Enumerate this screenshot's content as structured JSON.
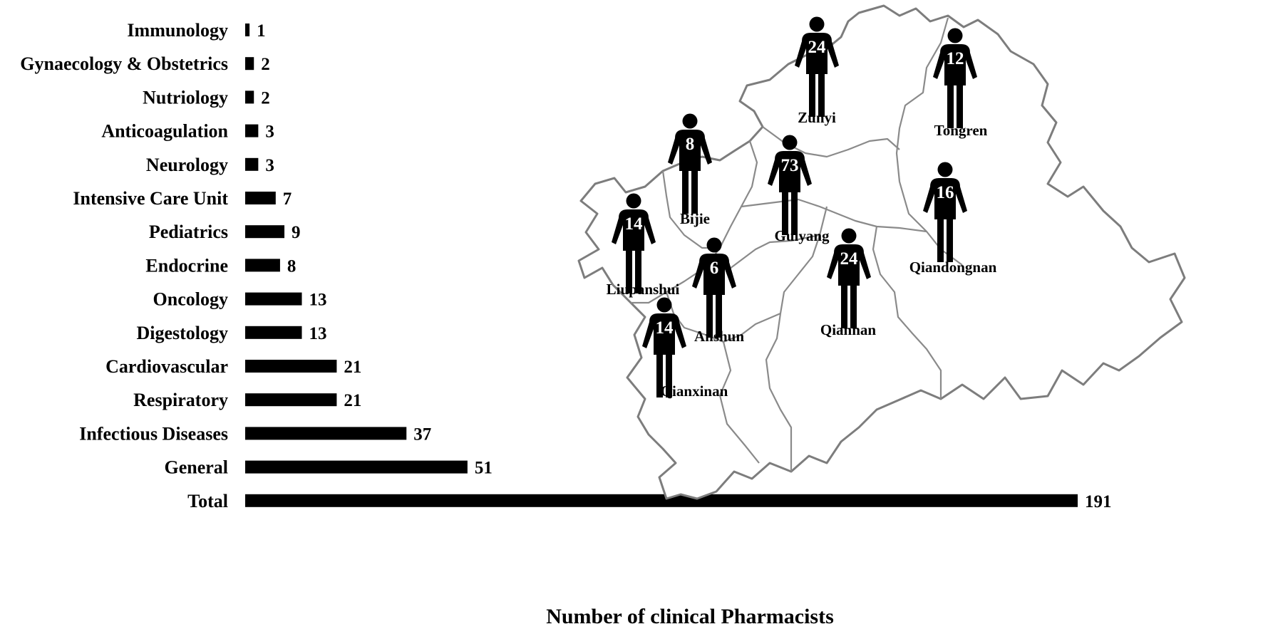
{
  "chart_data": [
    {
      "type": "bar",
      "orientation": "horizontal",
      "xlabel": "Number of clinical Pharmacists",
      "categories": [
        "Immunology",
        "Gynaecology & Obstetrics",
        "Nutriology",
        "Anticoagulation",
        "Neurology",
        "Intensive Care Unit",
        "Pediatrics",
        "Endocrine",
        "Oncology",
        "Digestology",
        "Cardiovascular",
        "Respiratory",
        "Infectious Diseases",
        "General",
        "Total"
      ],
      "values": [
        1,
        2,
        2,
        3,
        3,
        7,
        9,
        8,
        13,
        13,
        21,
        21,
        37,
        51,
        191
      ],
      "xlim": [
        0,
        191
      ],
      "bar_color": "#000000",
      "grid": false
    },
    {
      "type": "map",
      "regions": [
        {
          "name": "Zunyi",
          "value": 24
        },
        {
          "name": "Tongren",
          "value": 12
        },
        {
          "name": "Bijie",
          "value": 8
        },
        {
          "name": "Guiyang",
          "value": 73
        },
        {
          "name": "Qiandongnan",
          "value": 16
        },
        {
          "name": "Liupanshui",
          "value": 14
        },
        {
          "name": "Anshun",
          "value": 6
        },
        {
          "name": "Qiannan",
          "value": 24
        },
        {
          "name": "Qianxinan",
          "value": 14
        }
      ],
      "marker_icon": "person-icon",
      "marker_color": "#000000"
    }
  ]
}
